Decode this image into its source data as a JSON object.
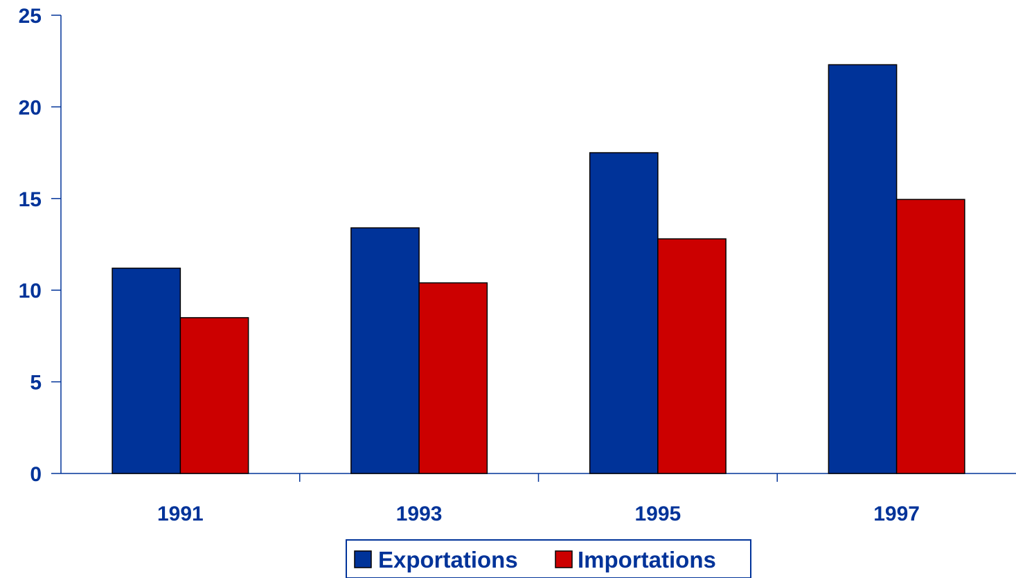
{
  "chart_data": {
    "type": "bar",
    "title": "",
    "xlabel": "",
    "ylabel": "",
    "categories": [
      "1991",
      "1993",
      "1995",
      "1997"
    ],
    "series": [
      {
        "name": "Exportations",
        "values": [
          11.2,
          13.4,
          17.5,
          22.3
        ]
      },
      {
        "name": "Importations",
        "values": [
          8.5,
          10.4,
          12.8,
          14.95
        ]
      }
    ],
    "ylim": [
      0,
      25
    ],
    "yticks": [
      "0",
      "5",
      "10",
      "15",
      "20",
      "25"
    ],
    "grid": false,
    "legend": "bottom-center"
  },
  "colors": {
    "axis_text": "#003399",
    "axis_line": "#003399",
    "series": [
      "#003399",
      "#cc0000"
    ],
    "bar_stroke": "#000000"
  }
}
